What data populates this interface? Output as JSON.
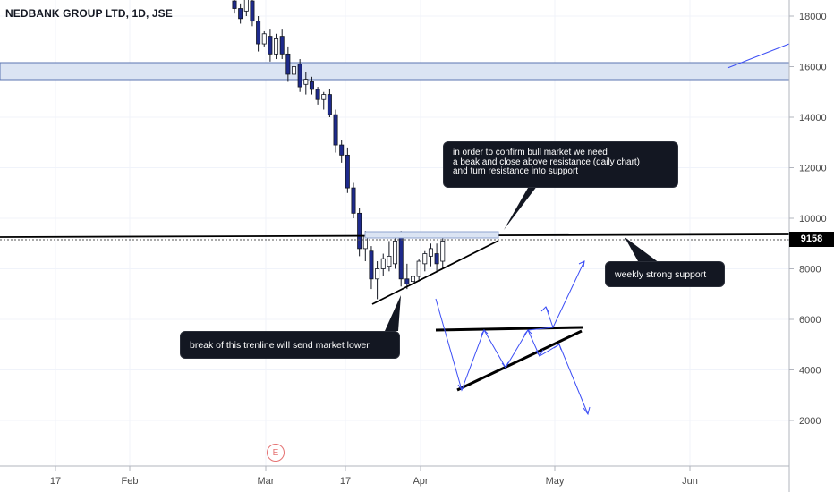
{
  "header": {
    "title": "NEDBANK GROUP LTD, 1D, JSE"
  },
  "price_tag": "9158",
  "earnings_marker": "E",
  "callouts": {
    "resistance_lines": [
      "in order to confirm bull market we need",
      "a beak and close above resistance (daily chart)",
      "and turn resistance into support"
    ],
    "support": "weekly strong support",
    "trendline": "break of this trenline will send market lower"
  },
  "colors": {
    "up": "#ffffff",
    "down": "#1e2a8c",
    "wick": "#131722",
    "zone_fill": "#dbe4f3",
    "zone_border": "#5b74b0",
    "arrow": "#3d4ff5",
    "axis_text": "#4a4a4a"
  },
  "chart_data": {
    "type": "candlestick",
    "y_axis": {
      "ticks": [
        2000,
        4000,
        6000,
        8000,
        10000,
        12000,
        14000,
        16000,
        18000
      ]
    },
    "x_axis": {
      "ticks": [
        "17",
        "Feb",
        "Mar",
        "17",
        "Apr",
        "May",
        "Jun"
      ]
    },
    "last_price": 9158,
    "resistance_zone": [
      15500,
      16200
    ],
    "horizontal_levels": [
      9400
    ],
    "candles": [
      {
        "o": 18600,
        "h": 18800,
        "l": 18100,
        "c": 18300
      },
      {
        "o": 18300,
        "h": 18500,
        "l": 17700,
        "c": 17900
      },
      {
        "o": 18200,
        "h": 18900,
        "l": 18000,
        "c": 18700
      },
      {
        "o": 18600,
        "h": 18700,
        "l": 17600,
        "c": 17800
      },
      {
        "o": 17800,
        "h": 18000,
        "l": 16600,
        "c": 16900
      },
      {
        "o": 16900,
        "h": 17400,
        "l": 16800,
        "c": 17300
      },
      {
        "o": 17200,
        "h": 17500,
        "l": 16200,
        "c": 16500
      },
      {
        "o": 16500,
        "h": 17300,
        "l": 16300,
        "c": 17100
      },
      {
        "o": 17200,
        "h": 17500,
        "l": 16300,
        "c": 16500
      },
      {
        "o": 16500,
        "h": 16800,
        "l": 15400,
        "c": 15700
      },
      {
        "o": 15700,
        "h": 16300,
        "l": 15600,
        "c": 16000
      },
      {
        "o": 16100,
        "h": 16300,
        "l": 15000,
        "c": 15200
      },
      {
        "o": 15300,
        "h": 15800,
        "l": 14900,
        "c": 15500
      },
      {
        "o": 15400,
        "h": 15600,
        "l": 14900,
        "c": 15100
      },
      {
        "o": 15100,
        "h": 15200,
        "l": 14500,
        "c": 14700
      },
      {
        "o": 14700,
        "h": 15000,
        "l": 14300,
        "c": 14900
      },
      {
        "o": 14900,
        "h": 15100,
        "l": 14000,
        "c": 14100
      },
      {
        "o": 14100,
        "h": 14300,
        "l": 12600,
        "c": 12900
      },
      {
        "o": 12900,
        "h": 13100,
        "l": 12200,
        "c": 12500
      },
      {
        "o": 12500,
        "h": 12800,
        "l": 11000,
        "c": 11200
      },
      {
        "o": 11200,
        "h": 11400,
        "l": 10000,
        "c": 10200
      },
      {
        "o": 10200,
        "h": 10400,
        "l": 8500,
        "c": 8800
      },
      {
        "o": 8800,
        "h": 9500,
        "l": 8300,
        "c": 9300
      },
      {
        "o": 8700,
        "h": 8900,
        "l": 7200,
        "c": 7600
      },
      {
        "o": 7600,
        "h": 8300,
        "l": 6800,
        "c": 8000
      },
      {
        "o": 8000,
        "h": 8600,
        "l": 7700,
        "c": 8400
      },
      {
        "o": 8100,
        "h": 9100,
        "l": 7900,
        "c": 8500
      },
      {
        "o": 8200,
        "h": 9200,
        "l": 8000,
        "c": 9100
      },
      {
        "o": 9300,
        "h": 9500,
        "l": 7300,
        "c": 7600
      },
      {
        "o": 7600,
        "h": 8200,
        "l": 7200,
        "c": 7400
      },
      {
        "o": 7500,
        "h": 8000,
        "l": 7300,
        "c": 7700
      },
      {
        "o": 7700,
        "h": 8400,
        "l": 7500,
        "c": 8300
      },
      {
        "o": 8200,
        "h": 8700,
        "l": 7900,
        "c": 8600
      },
      {
        "o": 8500,
        "h": 9000,
        "l": 8100,
        "c": 8800
      },
      {
        "o": 8600,
        "h": 9000,
        "l": 7900,
        "c": 8200
      },
      {
        "o": 8300,
        "h": 9400,
        "l": 8000,
        "c": 9100
      }
    ]
  }
}
